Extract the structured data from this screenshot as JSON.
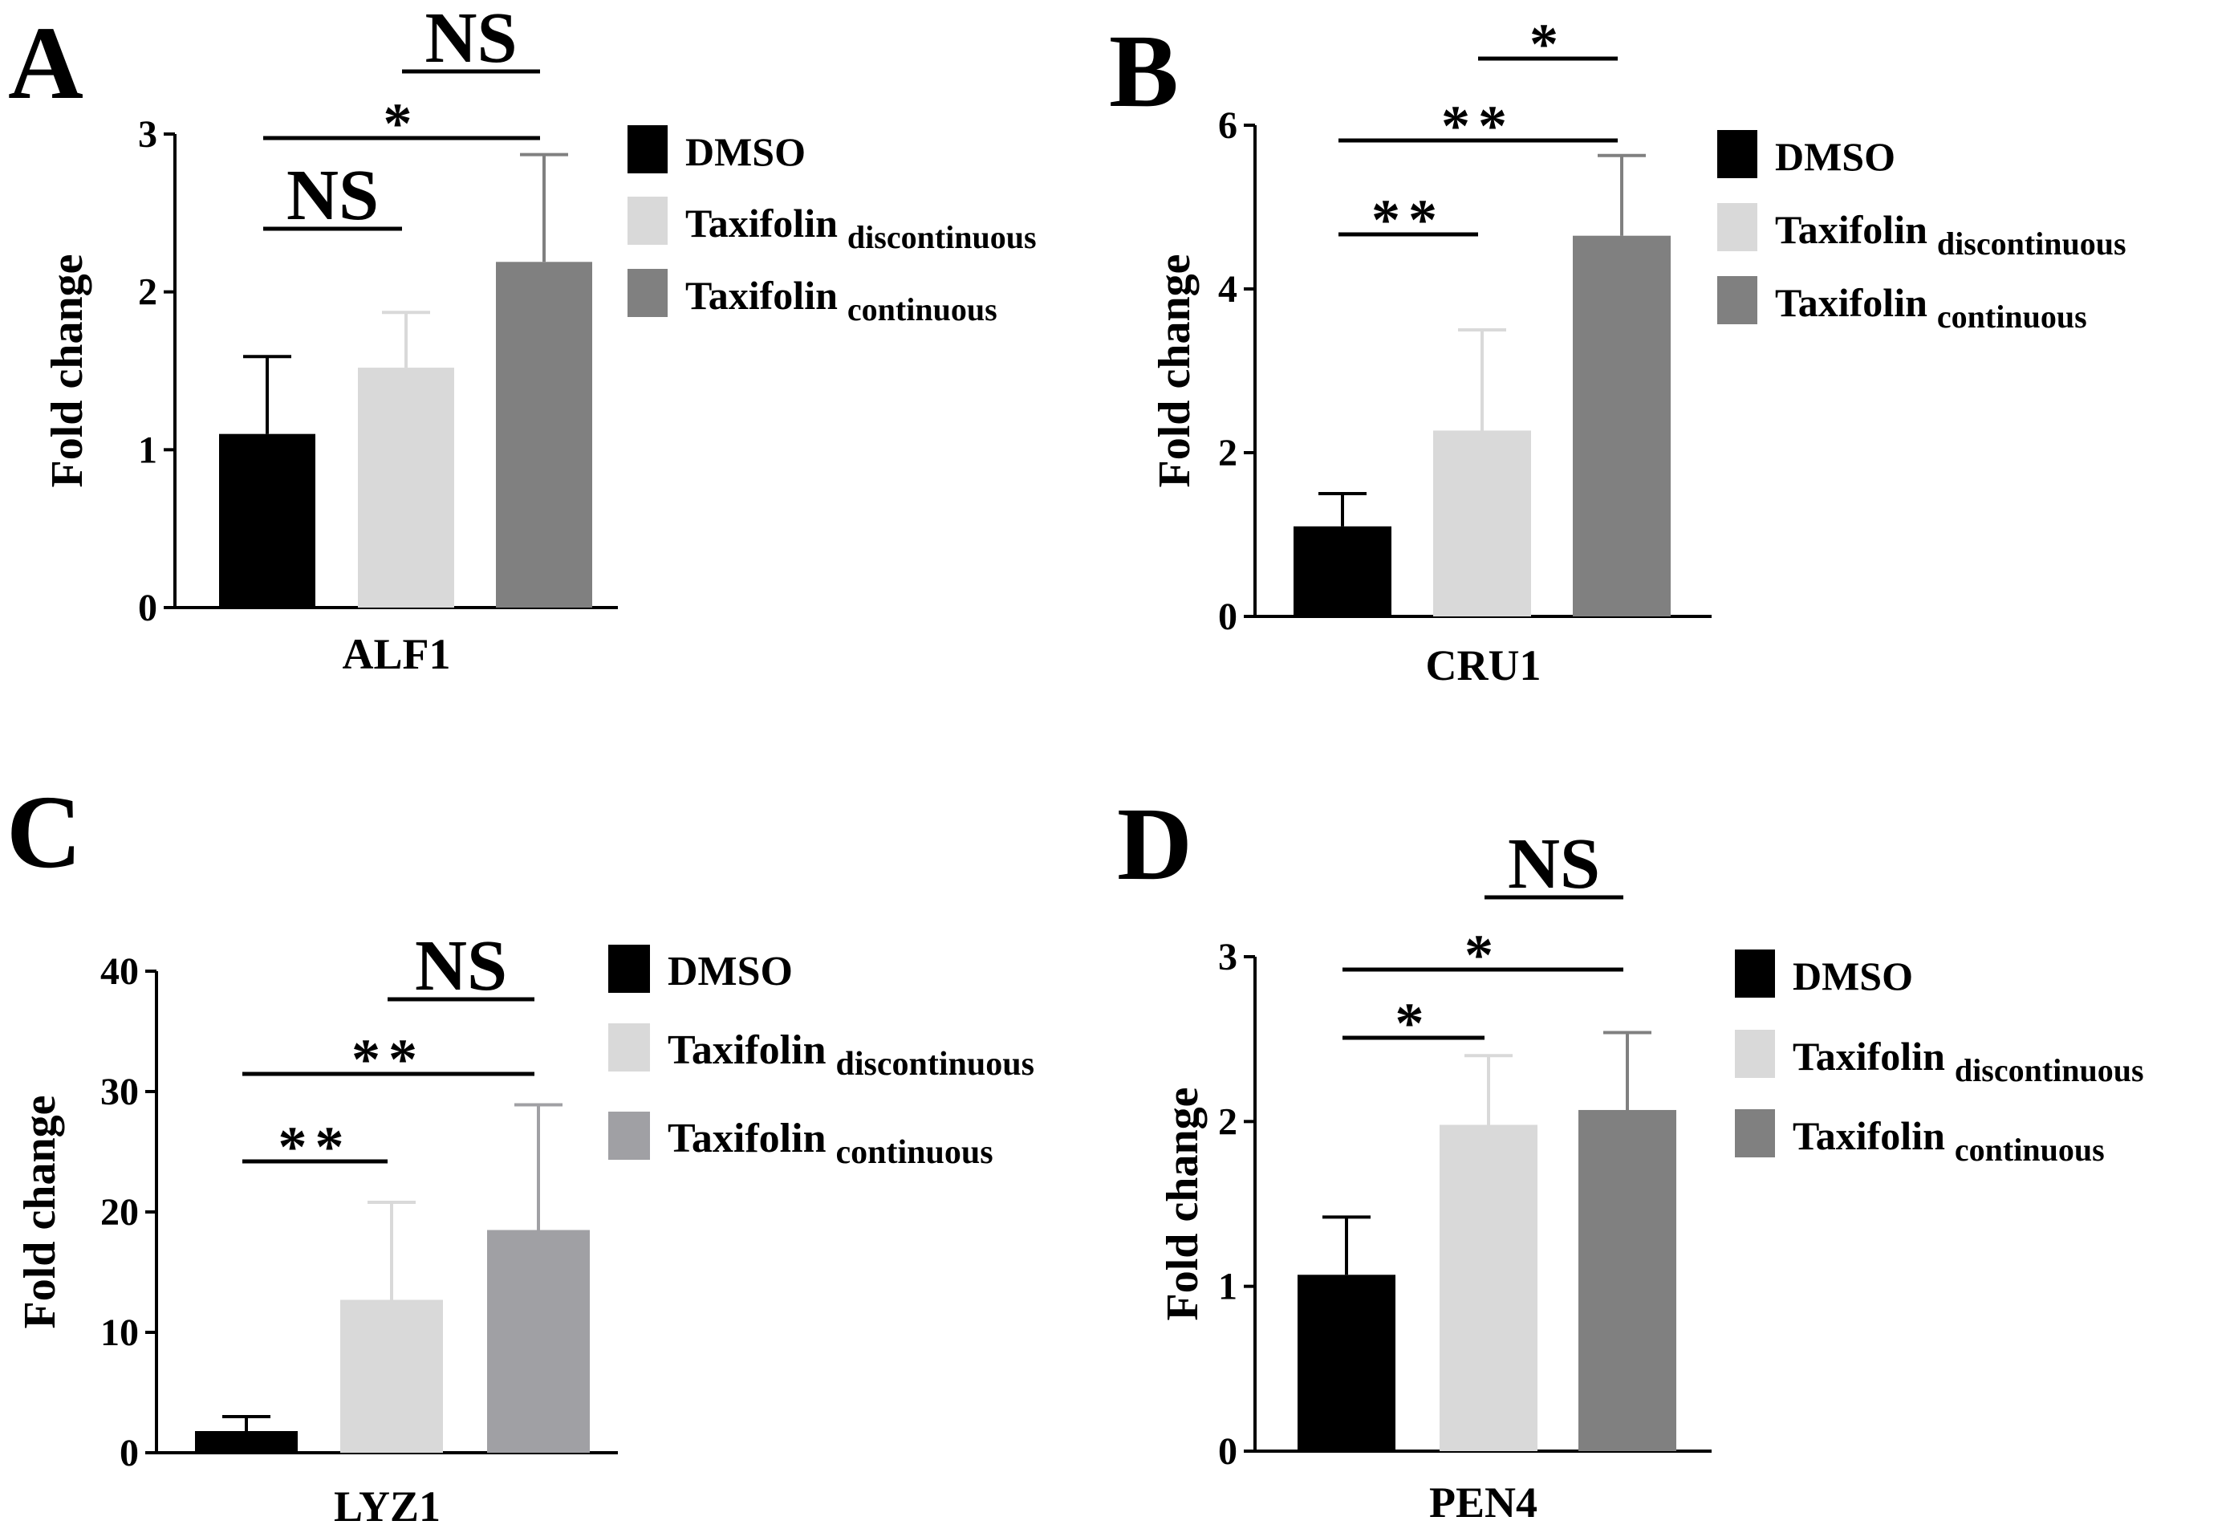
{
  "chart_data": [
    {
      "panel": "A",
      "type": "bar",
      "xlabel": "ALF1",
      "ylabel": "Fold change",
      "ylim": [
        0,
        3
      ],
      "yticks": [
        0,
        1,
        2,
        3
      ],
      "categories": [
        "DMSO",
        "Taxifolin discontinuous",
        "Taxifolin continuous"
      ],
      "values": [
        1.1,
        1.52,
        2.19
      ],
      "errors": [
        0.49,
        0.35,
        0.68
      ],
      "legend": [
        {
          "label": "DMSO",
          "sub": "",
          "color": "#000000"
        },
        {
          "label": "Taxifolin",
          "sub": "discontinuous",
          "color": "#d9d9d9"
        },
        {
          "label": "Taxifolin",
          "sub": "continuous",
          "color": "#808080"
        }
      ],
      "comparisons": [
        {
          "from": 0,
          "to": 1,
          "label": "NS"
        },
        {
          "from": 0,
          "to": 2,
          "label": "*"
        },
        {
          "from": 1,
          "to": 2,
          "label": "NS"
        }
      ]
    },
    {
      "panel": "B",
      "type": "bar",
      "xlabel": "CRU1",
      "ylabel": "Fold change",
      "ylim": [
        0,
        6
      ],
      "yticks": [
        0,
        2,
        4,
        6
      ],
      "categories": [
        "DMSO",
        "Taxifolin discontinuous",
        "Taxifolin continuous"
      ],
      "values": [
        1.1,
        2.27,
        4.65
      ],
      "errors": [
        0.4,
        1.23,
        0.98
      ],
      "legend": [
        {
          "label": "DMSO",
          "sub": "",
          "color": "#000000"
        },
        {
          "label": "Taxifolin",
          "sub": "discontinuous",
          "color": "#d9d9d9"
        },
        {
          "label": "Taxifolin",
          "sub": "continuous",
          "color": "#808080"
        }
      ],
      "comparisons": [
        {
          "from": 0,
          "to": 1,
          "label": "**"
        },
        {
          "from": 0,
          "to": 2,
          "label": "**"
        },
        {
          "from": 1,
          "to": 2,
          "label": "*"
        }
      ]
    },
    {
      "panel": "C",
      "type": "bar",
      "xlabel": "LYZ1",
      "ylabel": "Fold change",
      "ylim": [
        0,
        40
      ],
      "yticks": [
        0,
        10,
        20,
        30,
        40
      ],
      "categories": [
        "DMSO",
        "Taxifolin discontinuous",
        "Taxifolin continuous"
      ],
      "values": [
        1.8,
        12.7,
        18.5
      ],
      "errors": [
        1.2,
        8.1,
        10.4
      ],
      "legend": [
        {
          "label": "DMSO",
          "sub": "",
          "color": "#000000"
        },
        {
          "label": "Taxifolin",
          "sub": "discontinuous",
          "color": "#d9d9d9"
        },
        {
          "label": "Taxifolin",
          "sub": "continuous",
          "color": "#a0a0a4"
        }
      ],
      "comparisons": [
        {
          "from": 0,
          "to": 1,
          "label": "**"
        },
        {
          "from": 0,
          "to": 2,
          "label": "**"
        },
        {
          "from": 1,
          "to": 2,
          "label": "NS"
        }
      ]
    },
    {
      "panel": "D",
      "type": "bar",
      "xlabel": "PEN4",
      "ylabel": "Fold change",
      "ylim": [
        0,
        3
      ],
      "yticks": [
        0,
        1,
        2,
        3
      ],
      "categories": [
        "DMSO",
        "Taxifolin discontinuous",
        "Taxifolin continuous"
      ],
      "values": [
        1.07,
        1.98,
        2.07
      ],
      "errors": [
        0.35,
        0.42,
        0.47
      ],
      "legend": [
        {
          "label": "DMSO",
          "sub": "",
          "color": "#000000"
        },
        {
          "label": "Taxifolin",
          "sub": "discontinuous",
          "color": "#d9d9d9"
        },
        {
          "label": "Taxifolin",
          "sub": "continuous",
          "color": "#808080"
        }
      ],
      "comparisons": [
        {
          "from": 0,
          "to": 1,
          "label": "*"
        },
        {
          "from": 0,
          "to": 2,
          "label": "*"
        },
        {
          "from": 1,
          "to": 2,
          "label": "NS"
        }
      ]
    }
  ]
}
